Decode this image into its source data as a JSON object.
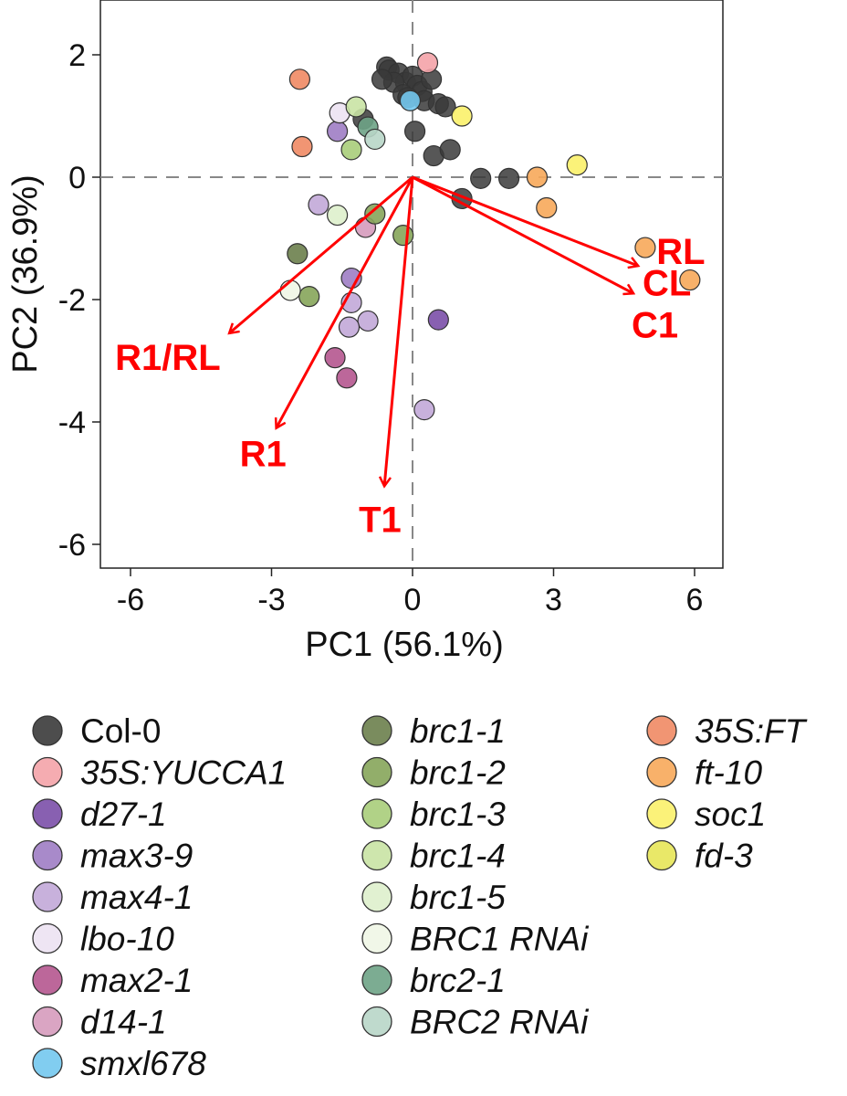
{
  "chart_data": {
    "type": "scatter",
    "subtype": "pca-biplot",
    "xlabel": "PC1 (56.1%)",
    "ylabel": "PC2 (36.9%)",
    "xlim": [
      -6.6,
      6.6
    ],
    "ylim": [
      -6.4,
      2.9
    ],
    "xticks": [
      -6,
      -3,
      0,
      3,
      6
    ],
    "yticks": [
      2,
      0,
      -2,
      -4,
      -6
    ],
    "zero_lines": "dashed",
    "grid": false,
    "legend_position": "bottom",
    "arrow_color": "#ff0000",
    "loadings": [
      {
        "label": "RL",
        "x": 4.8,
        "y": -1.45
      },
      {
        "label": "CL",
        "x": 4.7,
        "y": -1.9
      },
      {
        "label": "C1",
        "x": 4.7,
        "y": -1.9
      },
      {
        "label": "R1/RL",
        "x": -3.9,
        "y": -2.55
      },
      {
        "label": "R1",
        "x": -2.9,
        "y": -4.1
      },
      {
        "label": "T1",
        "x": -0.6,
        "y": -5.05
      }
    ],
    "series": [
      {
        "name": "Col-0",
        "italic": false,
        "color": "#3a3a3a",
        "points": [
          [
            -0.55,
            1.8
          ],
          [
            -0.5,
            1.75
          ],
          [
            -0.3,
            1.7
          ],
          [
            -0.15,
            1.55
          ],
          [
            0.0,
            1.65
          ],
          [
            0.1,
            1.5
          ],
          [
            0.2,
            1.4
          ],
          [
            -0.4,
            1.55
          ],
          [
            -0.65,
            1.6
          ],
          [
            -0.2,
            1.35
          ],
          [
            0.25,
            1.25
          ],
          [
            0.55,
            1.2
          ],
          [
            0.7,
            1.15
          ],
          [
            -0.1,
            1.3
          ],
          [
            0.4,
            1.6
          ],
          [
            -1.05,
            0.95
          ],
          [
            0.05,
            0.75
          ],
          [
            0.45,
            0.35
          ],
          [
            0.8,
            0.45
          ],
          [
            1.05,
            -0.35
          ],
          [
            1.45,
            -0.02
          ],
          [
            2.05,
            -0.02
          ]
        ]
      },
      {
        "name": "35S:YUCCA1",
        "italic": true,
        "color": "#f4a3a8",
        "points": [
          [
            0.32,
            1.87
          ]
        ]
      },
      {
        "name": "d27-1",
        "italic": true,
        "color": "#7b4fa8",
        "points": [
          [
            0.55,
            -2.33
          ]
        ]
      },
      {
        "name": "max3-9",
        "italic": true,
        "color": "#9f7dc4",
        "points": [
          [
            -1.6,
            0.75
          ],
          [
            -1.3,
            -1.65
          ]
        ]
      },
      {
        "name": "max4-1",
        "italic": true,
        "color": "#c2a9d8",
        "points": [
          [
            -2.0,
            -0.45
          ],
          [
            -1.3,
            -2.05
          ],
          [
            -0.95,
            -2.35
          ],
          [
            -1.35,
            -2.45
          ],
          [
            0.25,
            -3.8
          ]
        ]
      },
      {
        "name": "lbo-10",
        "italic": true,
        "color": "#ece2f2",
        "points": [
          [
            -1.55,
            1.05
          ]
        ]
      },
      {
        "name": "max2-1",
        "italic": true,
        "color": "#b5568f",
        "points": [
          [
            -1.65,
            -2.95
          ],
          [
            -1.4,
            -3.28
          ]
        ]
      },
      {
        "name": "d14-1",
        "italic": true,
        "color": "#d69bbd",
        "points": [
          [
            -1.0,
            -0.82
          ]
        ]
      },
      {
        "name": "smxl678",
        "italic": true,
        "color": "#73c8ee",
        "points": [
          [
            -0.05,
            1.25
          ]
        ]
      },
      {
        "name": "brc1-1",
        "italic": true,
        "color": "#6b7f4c",
        "points": [
          [
            -2.45,
            -1.25
          ]
        ]
      },
      {
        "name": "brc1-2",
        "italic": true,
        "color": "#86a55a",
        "points": [
          [
            -0.8,
            -0.6
          ],
          [
            -2.2,
            -1.95
          ],
          [
            -0.2,
            -0.95
          ]
        ]
      },
      {
        "name": "brc1-3",
        "italic": true,
        "color": "#a9cd7a",
        "points": [
          [
            -1.3,
            0.45
          ]
        ]
      },
      {
        "name": "brc1-4",
        "italic": true,
        "color": "#c9e3a4",
        "points": [
          [
            -1.2,
            1.15
          ]
        ]
      },
      {
        "name": "brc1-5",
        "italic": true,
        "color": "#def0cc",
        "points": [
          [
            -1.6,
            -0.62
          ]
        ]
      },
      {
        "name": "BRC1 RNAi",
        "italic": true,
        "color": "#eff6e6",
        "points": [
          [
            -2.6,
            -1.85
          ]
        ]
      },
      {
        "name": "brc2-1",
        "italic": true,
        "color": "#6ea386",
        "points": [
          [
            -0.95,
            0.82
          ]
        ]
      },
      {
        "name": "BRC2 RNAi",
        "italic": true,
        "color": "#b8d6c8",
        "points": [
          [
            -0.8,
            0.62
          ]
        ]
      },
      {
        "name": "35S:FT",
        "italic": true,
        "color": "#f08a64",
        "points": [
          [
            -2.4,
            1.6
          ],
          [
            -2.35,
            0.5
          ]
        ]
      },
      {
        "name": "ft-10",
        "italic": true,
        "color": "#f7a95a",
        "points": [
          [
            2.65,
            0.0
          ],
          [
            2.85,
            -0.5
          ],
          [
            4.95,
            -1.15
          ],
          [
            5.9,
            -1.68
          ]
        ]
      },
      {
        "name": "soc1",
        "italic": true,
        "color": "#fbf16a",
        "points": [
          [
            1.05,
            1.0
          ],
          [
            3.5,
            0.2
          ]
        ]
      },
      {
        "name": "fd-3",
        "italic": true,
        "color": "#e7e658",
        "points": []
      }
    ]
  }
}
